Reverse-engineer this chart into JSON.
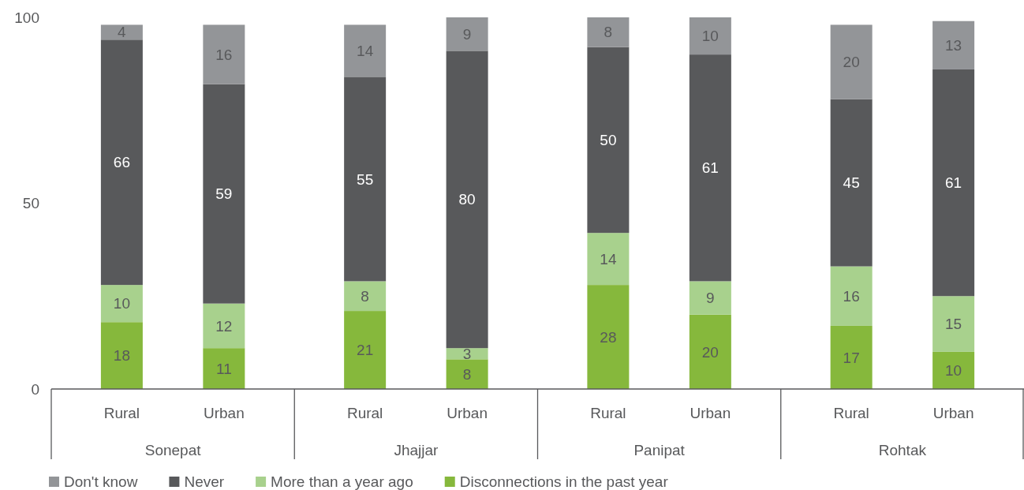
{
  "chart_data": {
    "type": "bar",
    "stacked": true,
    "data_labels": true,
    "legend": "bottom",
    "grid": false,
    "categories": [
      "Rural",
      "Urban",
      "Rural",
      "Urban",
      "Rural",
      "Urban",
      "Rural",
      "Urban"
    ],
    "annotations": [
      "Sonepat",
      "Jhajjar",
      "Panipat",
      "Rohtak"
    ],
    "ylim": [
      0,
      100
    ],
    "yticks": [
      0,
      50,
      100
    ],
    "series": [
      {
        "name": "Disconnections in the past year",
        "color": "#86b83c",
        "values": [
          18,
          11,
          21,
          8,
          28,
          20,
          17,
          10
        ]
      },
      {
        "name": "More than a year ago",
        "color": "#a8d18d",
        "values": [
          10,
          12,
          8,
          3,
          14,
          9,
          16,
          15
        ]
      },
      {
        "name": "Never",
        "color": "#58595b",
        "values": [
          66,
          59,
          55,
          80,
          50,
          61,
          45,
          61
        ]
      },
      {
        "name": "Don't know",
        "color": "#939598",
        "values": [
          4,
          16,
          14,
          9,
          8,
          10,
          20,
          13
        ]
      }
    ]
  }
}
